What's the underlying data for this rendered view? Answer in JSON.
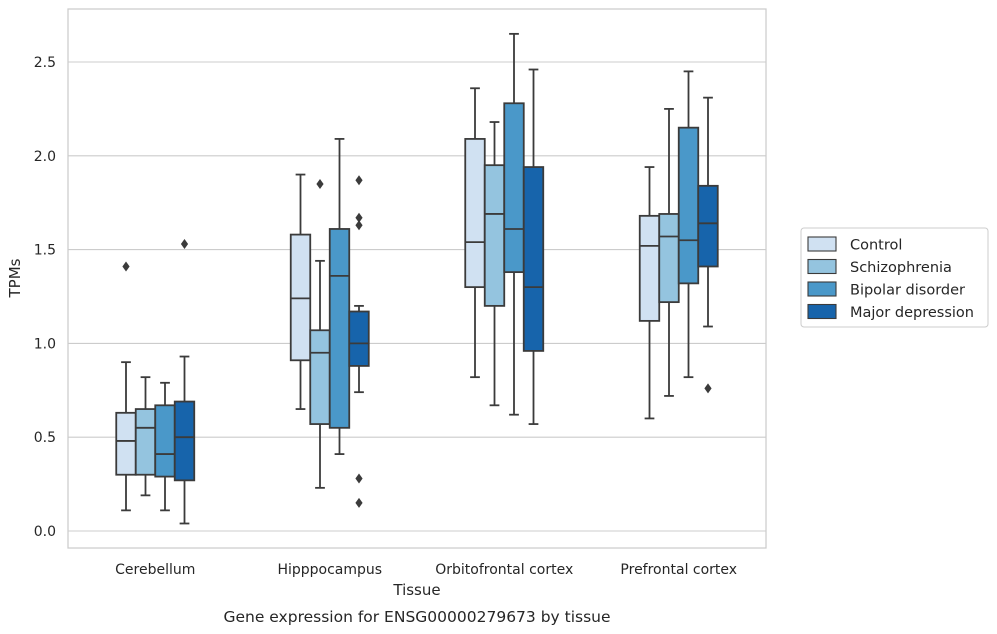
{
  "chart_data": {
    "type": "box",
    "title": "",
    "caption": "Gene expression for ENSG00000279673 by tissue",
    "xlabel": "Tissue",
    "ylabel": "TPMs",
    "ylim": [
      -0.08,
      2.8
    ],
    "yticks": [
      "0.0",
      "0.5",
      "1.0",
      "1.5",
      "2.0",
      "2.5"
    ],
    "grid": "horizontal",
    "legend_position": "outside-right",
    "categories": [
      "Cerebellum",
      "Hipppocampus",
      "Orbitofrontal cortex",
      "Prefrontal cortex"
    ],
    "series": [
      {
        "name": "Control",
        "color": "#d0e1f2",
        "boxes": [
          {
            "whislo": 0.11,
            "q1": 0.3,
            "med": 0.48,
            "q3": 0.63,
            "whishi": 0.9,
            "fliers": [
              1.41
            ]
          },
          {
            "whislo": 0.65,
            "q1": 0.91,
            "med": 1.24,
            "q3": 1.58,
            "whishi": 1.9,
            "fliers": []
          },
          {
            "whislo": 0.82,
            "q1": 1.3,
            "med": 1.54,
            "q3": 2.09,
            "whishi": 2.36,
            "fliers": []
          },
          {
            "whislo": 0.6,
            "q1": 1.12,
            "med": 1.52,
            "q3": 1.68,
            "whishi": 1.94,
            "fliers": []
          }
        ]
      },
      {
        "name": "Schizophrenia",
        "color": "#94c4df",
        "boxes": [
          {
            "whislo": 0.19,
            "q1": 0.3,
            "med": 0.55,
            "q3": 0.65,
            "whishi": 0.82,
            "fliers": []
          },
          {
            "whislo": 0.23,
            "q1": 0.57,
            "med": 0.95,
            "q3": 1.07,
            "whishi": 1.44,
            "fliers": [
              1.85
            ]
          },
          {
            "whislo": 0.67,
            "q1": 1.2,
            "med": 1.69,
            "q3": 1.95,
            "whishi": 2.18,
            "fliers": []
          },
          {
            "whislo": 0.72,
            "q1": 1.22,
            "med": 1.57,
            "q3": 1.69,
            "whishi": 2.25,
            "fliers": []
          }
        ]
      },
      {
        "name": "Bipolar disorder",
        "color": "#4a98c9",
        "boxes": [
          {
            "whislo": 0.11,
            "q1": 0.29,
            "med": 0.41,
            "q3": 0.67,
            "whishi": 0.79,
            "fliers": []
          },
          {
            "whislo": 0.41,
            "q1": 0.55,
            "med": 1.36,
            "q3": 1.61,
            "whishi": 2.09,
            "fliers": []
          },
          {
            "whislo": 0.62,
            "q1": 1.38,
            "med": 1.61,
            "q3": 2.28,
            "whishi": 2.65,
            "fliers": []
          },
          {
            "whislo": 0.82,
            "q1": 1.32,
            "med": 1.55,
            "q3": 2.15,
            "whishi": 2.45,
            "fliers": []
          }
        ]
      },
      {
        "name": "Major depression",
        "color": "#1764ab",
        "boxes": [
          {
            "whislo": 0.04,
            "q1": 0.27,
            "med": 0.5,
            "q3": 0.69,
            "whishi": 0.93,
            "fliers": [
              1.53
            ]
          },
          {
            "whislo": 0.74,
            "q1": 0.88,
            "med": 1.0,
            "q3": 1.17,
            "whishi": 1.2,
            "fliers": [
              1.87,
              1.67,
              1.63,
              0.28,
              0.15
            ]
          },
          {
            "whislo": 0.57,
            "q1": 0.96,
            "med": 1.3,
            "q3": 1.94,
            "whishi": 2.46,
            "fliers": []
          },
          {
            "whislo": 1.09,
            "q1": 1.41,
            "med": 1.64,
            "q3": 1.84,
            "whishi": 2.31,
            "fliers": [
              0.76
            ]
          }
        ]
      }
    ]
  }
}
